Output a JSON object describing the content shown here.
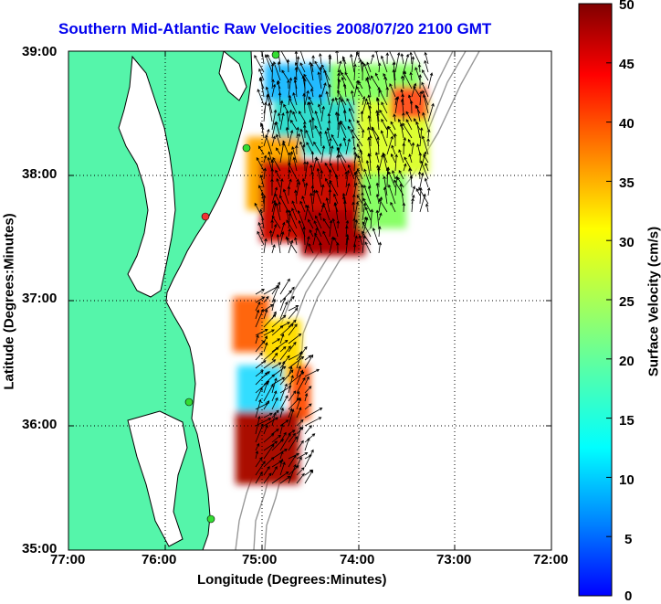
{
  "title": "Southern Mid-Atlantic Raw Velocities 2008/07/20 2100 GMT",
  "xaxis": {
    "label": "Longitude (Degrees:Minutes)",
    "ticks": [
      "77:00",
      "76:00",
      "75:00",
      "74:00",
      "73:00",
      "72:00"
    ]
  },
  "yaxis": {
    "label": "Latitude (Degrees:Minutes)",
    "ticks": [
      "39:00",
      "38:00",
      "37:00",
      "36:00",
      "35:00"
    ]
  },
  "colorbar": {
    "label": "Surface Velocity (cm/s)",
    "ticks": [
      "50",
      "45",
      "40",
      "35",
      "30",
      "25",
      "20",
      "15",
      "10",
      "5",
      "0"
    ],
    "min": 0,
    "max": 50
  },
  "colors": {
    "land": "#55f5aa",
    "coastline": "#000000",
    "bathymetry": "#999999",
    "title": "#0000ee",
    "station": "#33dd33",
    "station_alt": "#ee3333"
  }
}
